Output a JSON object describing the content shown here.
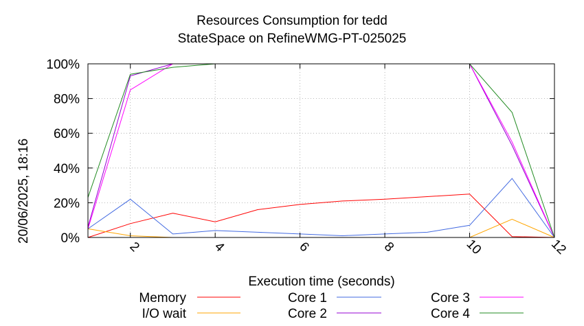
{
  "title_line1": "Resources Consumption for tedd",
  "title_line2": "StateSpace on RefineWMG-PT-025025",
  "side_stamp": "20/06/2025, 18:16",
  "chart_data": {
    "type": "line",
    "title": "Resources Consumption for tedd StateSpace on RefineWMG-PT-025025",
    "xlabel": "Execution time (seconds)",
    "ylabel": "",
    "xlim": [
      1,
      12
    ],
    "ylim": [
      0,
      100
    ],
    "x_ticks": [
      2,
      4,
      6,
      8,
      10,
      12
    ],
    "x_tick_labels": [
      "2",
      "4",
      "6",
      "8",
      "10",
      "12"
    ],
    "y_ticks": [
      0,
      20,
      40,
      60,
      80,
      100
    ],
    "y_tick_labels": [
      "0%",
      "20%",
      "40%",
      "60%",
      "80%",
      "100%"
    ],
    "grid": true,
    "legend_position": "bottom",
    "series": [
      {
        "name": "Memory",
        "color": "#ff0000",
        "x": [
          1,
          2,
          3,
          4,
          5,
          6,
          7,
          8,
          9,
          10,
          11,
          12
        ],
        "values": [
          0,
          8,
          14,
          9,
          16,
          19,
          21,
          22,
          23.5,
          25,
          0.5,
          0
        ]
      },
      {
        "name": "I/O wait",
        "color": "#ffa500",
        "x": [
          1,
          2,
          3,
          4,
          5,
          6,
          7,
          8,
          9,
          10,
          11,
          12
        ],
        "values": [
          5,
          1,
          0,
          0,
          0,
          0,
          0,
          0,
          0,
          0,
          10.5,
          0
        ]
      },
      {
        "name": "Core 1",
        "color": "#4169e1",
        "x": [
          1,
          2,
          3,
          4,
          5,
          6,
          7,
          8,
          9,
          10,
          11,
          12
        ],
        "values": [
          5,
          22,
          2,
          4,
          3,
          2,
          1,
          2,
          3,
          7,
          34,
          0
        ]
      },
      {
        "name": "Core 2",
        "color": "#9400d3",
        "x": [
          1,
          2,
          3,
          4,
          5,
          6,
          7,
          8,
          9,
          10,
          11,
          12
        ],
        "values": [
          6,
          93,
          100,
          100,
          100,
          100,
          100,
          100,
          100,
          100,
          53,
          0
        ]
      },
      {
        "name": "Core 3",
        "color": "#ff00ff",
        "x": [
          1,
          2,
          3,
          4,
          5,
          6,
          7,
          8,
          9,
          10,
          11,
          12
        ],
        "values": [
          5,
          85,
          100,
          100,
          100,
          100,
          100,
          100,
          100,
          100,
          55,
          0
        ]
      },
      {
        "name": "Core 4",
        "color": "#228b22",
        "x": [
          1,
          2,
          3,
          4,
          5,
          6,
          7,
          8,
          9,
          10,
          11,
          12
        ],
        "values": [
          23,
          94,
          98,
          100,
          100,
          100,
          100,
          100,
          100,
          100,
          72,
          0
        ]
      }
    ]
  }
}
